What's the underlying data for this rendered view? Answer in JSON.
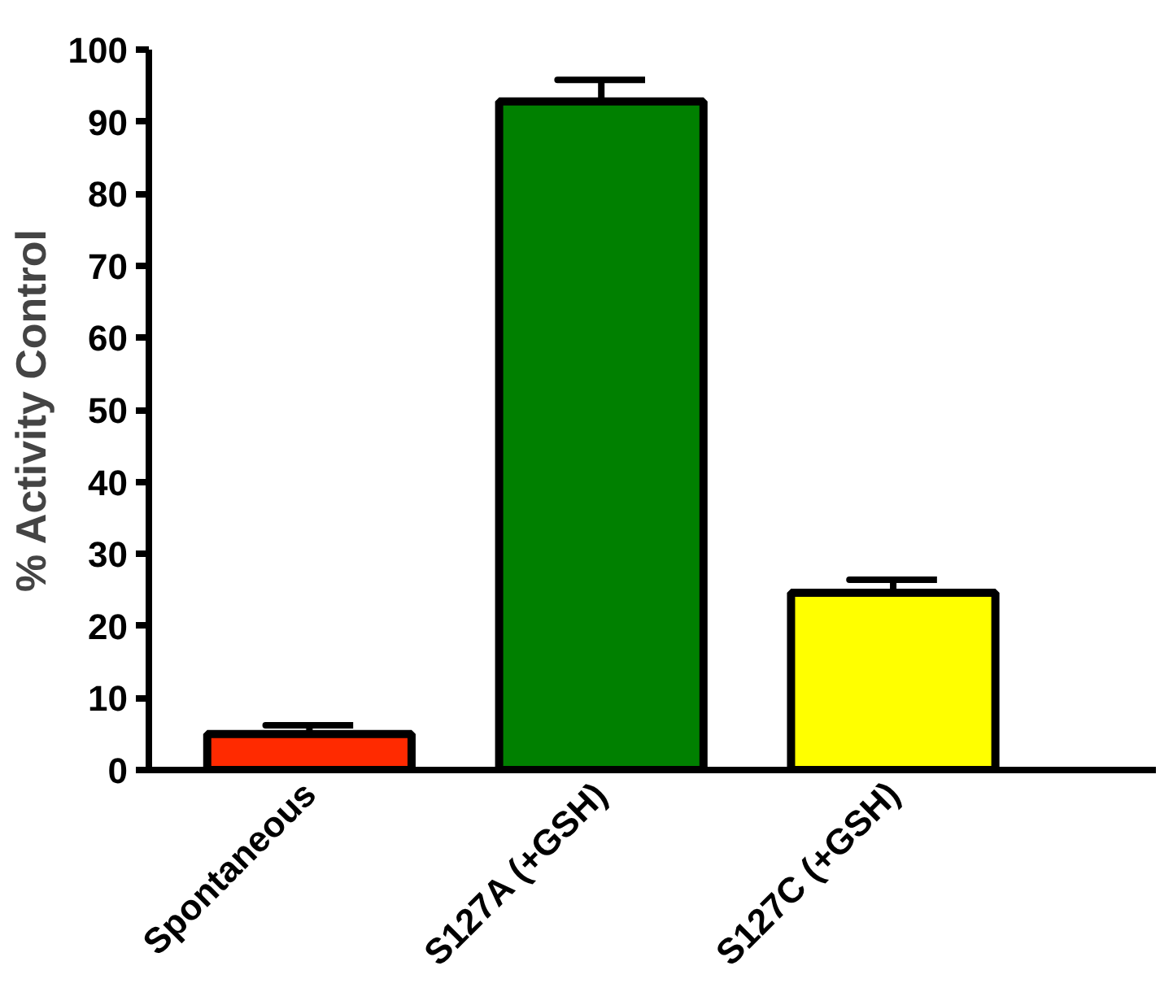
{
  "chart_data": {
    "type": "bar",
    "ylabel": "% Activity Control",
    "categories": [
      "Spontaneous",
      "S127A (+GSH)",
      "S127C (+GSH)"
    ],
    "values": [
      5.0,
      92.8,
      24.6
    ],
    "colors": [
      "#ff2a00",
      "#008000",
      "#ffff00"
    ],
    "errors": [
      [
        5.0,
        6.2
      ],
      [
        92.8,
        95.8
      ],
      [
        24.6,
        26.4
      ]
    ],
    "ylim": [
      0,
      100
    ],
    "yticks": [
      0,
      10,
      20,
      30,
      40,
      50,
      60,
      70,
      80,
      90,
      100
    ],
    "grid": false
  }
}
